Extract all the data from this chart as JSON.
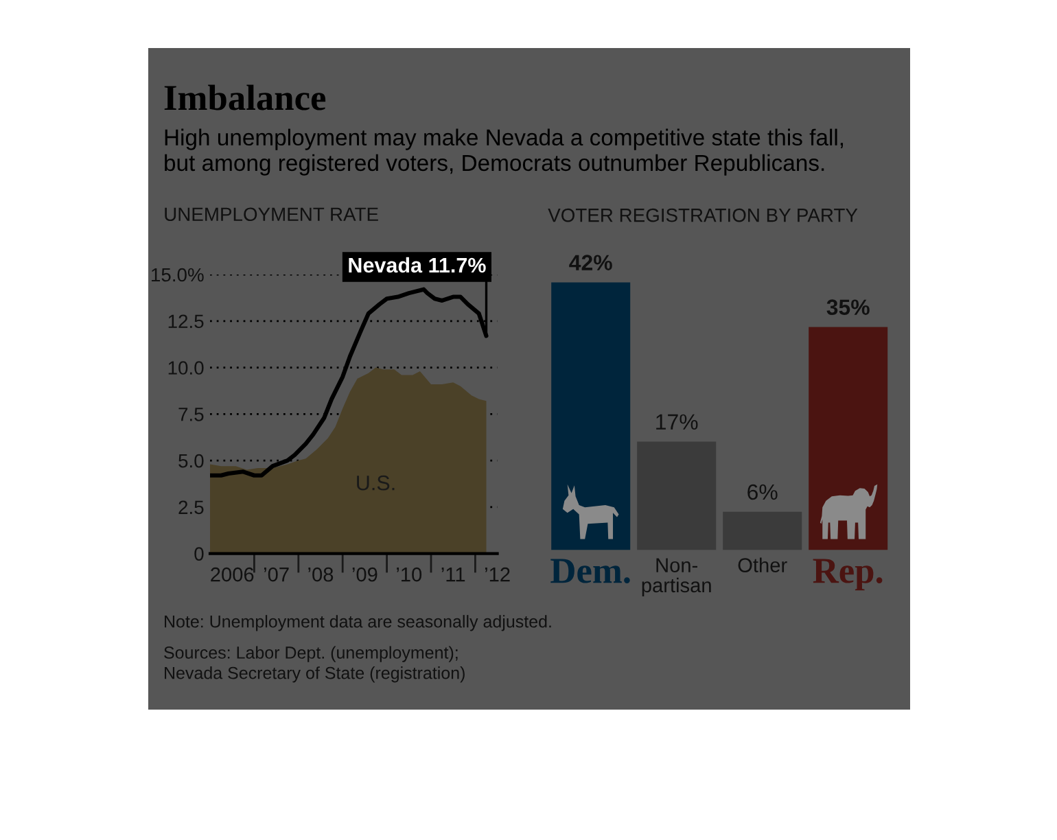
{
  "chart_data": [
    {
      "type": "other",
      "title": "Imbalance",
      "subtitle": "High unemployment may make Nevada a competitive state this fall,\nbut among registered voters, Democrats outnumber Republicans.",
      "annotations": [
        "Note: Unemployment data are seasonally adjusted.",
        "Sources: Labor Dept. (unemployment);\nNevada Secretary of State (registration)"
      ]
    },
    {
      "type": "line",
      "title": "UNEMPLOYMENT RATE",
      "xlim": [
        "2006-01",
        "2012-07"
      ],
      "xticks": [
        {
          "value": "2006-07",
          "label": "2006"
        },
        {
          "value": "2007-01",
          "label": null
        },
        {
          "value": "2007-07",
          "label": "’07"
        },
        {
          "value": "2008-01",
          "label": null
        },
        {
          "value": "2008-07",
          "label": "’08"
        },
        {
          "value": "2009-01",
          "label": null
        },
        {
          "value": "2009-07",
          "label": "’09"
        },
        {
          "value": "2010-01",
          "label": null
        },
        {
          "value": "2010-07",
          "label": "’10"
        },
        {
          "value": "2011-01",
          "label": null
        },
        {
          "value": "2011-07",
          "label": "’11"
        },
        {
          "value": "2012-01",
          "label": null
        },
        {
          "value": "2012-07",
          "label": "’12"
        }
      ],
      "ylim": [
        0,
        15
      ],
      "yticks": [
        0,
        2.5,
        {
          "value": 5,
          "label": "5.0"
        },
        7.5,
        {
          "value": 10,
          "label": "10.0"
        },
        12.5,
        {
          "value": 15,
          "label": "15.0%"
        }
      ],
      "grid": "y",
      "series": [
        {
          "name": "U.S.",
          "type": "area",
          "color": "#4b4128",
          "x": [
            "2006-01",
            "2006-04",
            "2006-08",
            "2006-11",
            "2007-02",
            "2007-06",
            "2007-10",
            "2008-01",
            "2008-03",
            "2008-06",
            "2008-09",
            "2008-11",
            "2009-01",
            "2009-03",
            "2009-05",
            "2009-08",
            "2009-10",
            "2009-12",
            "2010-03",
            "2010-05",
            "2010-08",
            "2010-10",
            "2011-01",
            "2011-04",
            "2011-07",
            "2011-09",
            "2011-12",
            "2012-02",
            "2012-04"
          ],
          "values": [
            4.8,
            4.7,
            4.7,
            4.5,
            4.6,
            4.6,
            4.8,
            5.0,
            5.1,
            5.6,
            6.2,
            6.8,
            7.8,
            8.7,
            9.4,
            9.7,
            10.0,
            9.9,
            9.9,
            9.6,
            9.6,
            9.8,
            9.1,
            9.1,
            9.2,
            9.0,
            8.5,
            8.3,
            8.2
          ]
        },
        {
          "type": "line",
          "color": "#000000",
          "x": [
            "2006-01",
            "2006-04",
            "2006-06",
            "2006-10",
            "2007-01",
            "2007-03",
            "2007-06",
            "2007-10",
            "2007-12",
            "2008-03",
            "2008-05",
            "2008-08",
            "2008-10",
            "2009-01",
            "2009-03",
            "2009-06",
            "2009-08",
            "2009-11",
            "2010-01",
            "2010-04",
            "2010-07",
            "2010-11",
            "2010-12",
            "2011-02",
            "2011-04",
            "2011-07",
            "2011-09",
            "2011-11",
            "2012-02",
            "2012-04"
          ],
          "values": [
            4.2,
            4.2,
            4.3,
            4.4,
            4.2,
            4.2,
            4.7,
            5.0,
            5.3,
            5.9,
            6.4,
            7.3,
            8.3,
            9.5,
            10.6,
            12.0,
            12.9,
            13.4,
            13.7,
            13.8,
            14.0,
            14.2,
            14.0,
            13.7,
            13.6,
            13.8,
            13.8,
            13.4,
            12.9,
            11.7
          ]
        }
      ],
      "annotations": [
        {
          "text": "Nevada 11.7%",
          "x": "2012-04",
          "y": 11.7
        }
      ]
    },
    {
      "type": "bar",
      "title": "VOTER REGISTRATION BY PARTY",
      "categories": [
        "Dem.",
        "Non-\npartisan",
        "Other",
        "Rep."
      ],
      "values": [
        42,
        17,
        6,
        35
      ],
      "colors": [
        "#00253c",
        "#3b3b3b",
        "#3b3b3b",
        "#4b1411"
      ],
      "value_labels": [
        "42%",
        "17%",
        "6%",
        "35%"
      ]
    }
  ]
}
